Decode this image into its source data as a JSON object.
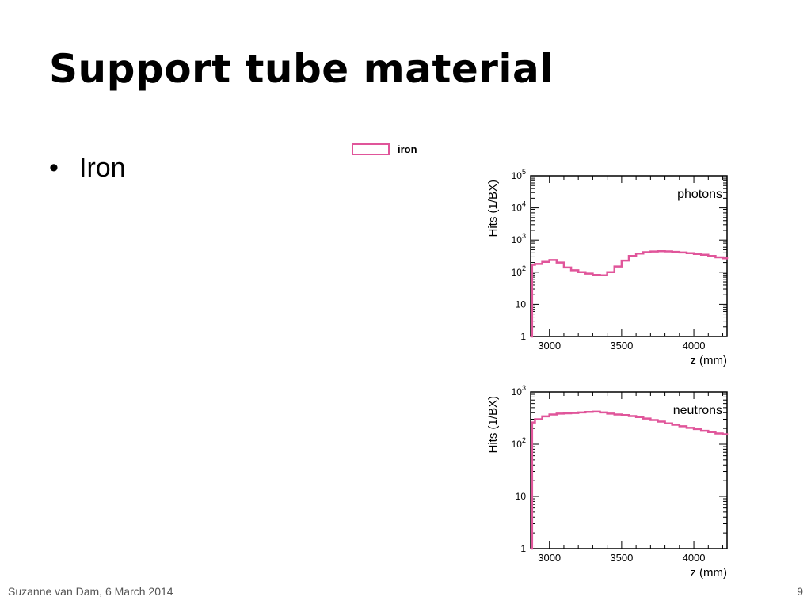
{
  "slide": {
    "title": "Support tube material",
    "bullets": [
      "Iron"
    ],
    "footer": "Suzanne van Dam, 6 March 2014",
    "page_number": "9"
  },
  "legend": {
    "entries": [
      "iron"
    ],
    "color": "#e0559a"
  },
  "chart_data": [
    {
      "type": "line",
      "annotation": "photons",
      "xlabel": "z (mm)",
      "ylabel": "Hits (1/BX)",
      "xlim": [
        2870,
        4230
      ],
      "ylim": [
        1,
        100000
      ],
      "log_y": true,
      "xticks": [
        3000,
        3500,
        4000
      ],
      "yticks": [
        {
          "value": 1,
          "base": "1",
          "exp": ""
        },
        {
          "value": 10,
          "base": "10",
          "exp": ""
        },
        {
          "value": 100,
          "base": "10",
          "exp": "2"
        },
        {
          "value": 1000,
          "base": "10",
          "exp": "3"
        },
        {
          "value": 10000,
          "base": "10",
          "exp": "4"
        },
        {
          "value": 100000,
          "base": "10",
          "exp": "5"
        }
      ],
      "series": [
        {
          "color": "#e0559a",
          "x": [
            2870,
            2880,
            2900,
            2950,
            3000,
            3050,
            3100,
            3150,
            3200,
            3250,
            3300,
            3350,
            3400,
            3450,
            3500,
            3550,
            3600,
            3650,
            3700,
            3750,
            3800,
            3850,
            3900,
            3950,
            4000,
            4050,
            4100,
            4150,
            4200,
            4230
          ],
          "y": [
            1,
            170,
            180,
            210,
            240,
            200,
            140,
            115,
            100,
            90,
            82,
            80,
            100,
            150,
            230,
            320,
            380,
            420,
            440,
            450,
            445,
            430,
            410,
            390,
            370,
            350,
            320,
            290,
            270,
            260
          ]
        }
      ]
    },
    {
      "type": "line",
      "annotation": "neutrons",
      "xlabel": "z (mm)",
      "ylabel": "Hits (1/BX)",
      "xlim": [
        2870,
        4230
      ],
      "ylim": [
        1,
        1000
      ],
      "log_y": true,
      "xticks": [
        3000,
        3500,
        4000
      ],
      "yticks": [
        {
          "value": 1,
          "base": "1",
          "exp": ""
        },
        {
          "value": 10,
          "base": "10",
          "exp": ""
        },
        {
          "value": 100,
          "base": "10",
          "exp": "2"
        },
        {
          "value": 1000,
          "base": "10",
          "exp": "3"
        }
      ],
      "series": [
        {
          "color": "#e0559a",
          "x": [
            2870,
            2880,
            2900,
            2950,
            3000,
            3050,
            3100,
            3150,
            3200,
            3250,
            3300,
            3350,
            3400,
            3450,
            3500,
            3550,
            3600,
            3650,
            3700,
            3750,
            3800,
            3850,
            3900,
            3950,
            4000,
            4050,
            4100,
            4150,
            4200,
            4230
          ],
          "y": [
            1,
            260,
            300,
            340,
            370,
            385,
            390,
            395,
            405,
            415,
            420,
            405,
            385,
            370,
            360,
            345,
            330,
            310,
            290,
            270,
            250,
            235,
            220,
            205,
            195,
            180,
            170,
            160,
            155,
            150
          ]
        }
      ]
    }
  ]
}
